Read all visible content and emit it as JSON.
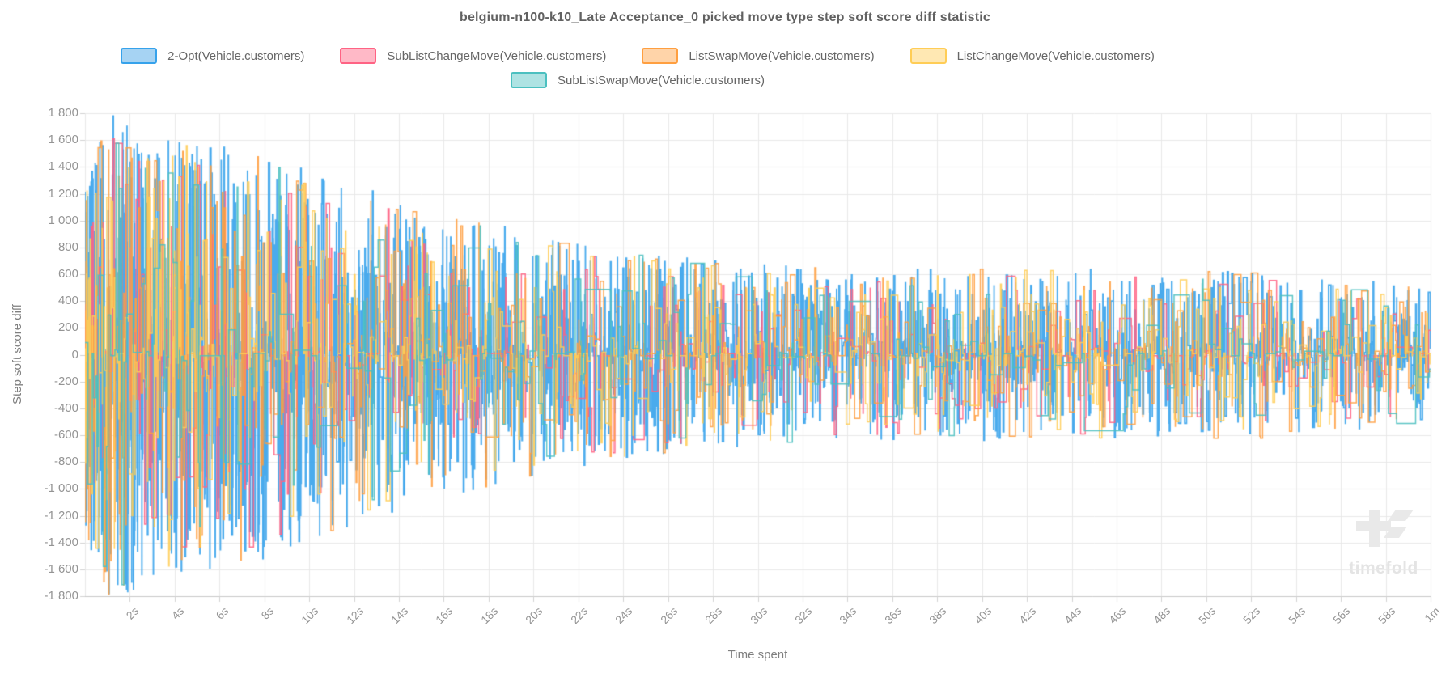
{
  "chart": {
    "title": "belgium-n100-k10_Late Acceptance_0 picked move type step soft score diff statistic",
    "x_axis_title": "Time spent",
    "y_axis_title": "Step soft score diff"
  },
  "watermark": {
    "text": "timefold"
  },
  "colors": {
    "grid": "#e8e8e8",
    "axis_border": "#c9c9c9",
    "tick_mark": "#d2d2d2",
    "title_text": "#616161",
    "tick_text": "#949494",
    "axis_title_text": "#7f7f7f",
    "legend_text": "#666666",
    "watermark": "#e9e9e9"
  },
  "chart_data": {
    "type": "line",
    "stepped": true,
    "title": "belgium-n100-k10_Late Acceptance_0 picked move type step soft score diff statistic",
    "xlabel": "Time spent",
    "ylabel": "Step soft score diff",
    "xlim_seconds": [
      0,
      60
    ],
    "ylim": [
      -1800,
      1800
    ],
    "grid": true,
    "legend_position": "top",
    "y_tick_values": [
      1800,
      1600,
      1400,
      1200,
      1000,
      800,
      600,
      400,
      200,
      0,
      -200,
      -400,
      -600,
      -800,
      -1000,
      -1200,
      -1400,
      -1600,
      -1800
    ],
    "y_ticks": [
      "1 800",
      "1 600",
      "1 400",
      "1 200",
      "1 000",
      "800",
      "600",
      "400",
      "200",
      "0",
      "-200",
      "-400",
      "-600",
      "-800",
      "-1 000",
      "-1 200",
      "-1 400",
      "-1 600",
      "-1 800"
    ],
    "x_ticks": [
      {
        "t": 2,
        "label": "2s"
      },
      {
        "t": 4,
        "label": "4s"
      },
      {
        "t": 6,
        "label": "6s"
      },
      {
        "t": 8,
        "label": "8s"
      },
      {
        "t": 10,
        "label": "10s"
      },
      {
        "t": 12,
        "label": "12s"
      },
      {
        "t": 14,
        "label": "14s"
      },
      {
        "t": 16,
        "label": "16s"
      },
      {
        "t": 18,
        "label": "18s"
      },
      {
        "t": 20,
        "label": "20s"
      },
      {
        "t": 22,
        "label": "22s"
      },
      {
        "t": 24,
        "label": "24s"
      },
      {
        "t": 26,
        "label": "26s"
      },
      {
        "t": 28,
        "label": "28s"
      },
      {
        "t": 30,
        "label": "30s"
      },
      {
        "t": 32,
        "label": "32s"
      },
      {
        "t": 34,
        "label": "34s"
      },
      {
        "t": 36,
        "label": "36s"
      },
      {
        "t": 38,
        "label": "38s"
      },
      {
        "t": 40,
        "label": "40s"
      },
      {
        "t": 42,
        "label": "42s"
      },
      {
        "t": 44,
        "label": "44s"
      },
      {
        "t": 46,
        "label": "46s"
      },
      {
        "t": 48,
        "label": "48s"
      },
      {
        "t": 50,
        "label": "50s"
      },
      {
        "t": 52,
        "label": "52s"
      },
      {
        "t": 54,
        "label": "54s"
      },
      {
        "t": 56,
        "label": "56s"
      },
      {
        "t": 58,
        "label": "58s"
      },
      {
        "t": 60,
        "label": "1m"
      }
    ],
    "series": [
      {
        "name": "2-Opt(Vehicle.customers)",
        "color": "#36A2EB",
        "fill": "#A6D3F3",
        "legend_row": 0,
        "points": 3200,
        "amp_scale": 1.0,
        "tail_power": 2.0,
        "x_power": 1.45,
        "seed": 101
      },
      {
        "name": "SubListChangeMove(Vehicle.customers)",
        "color": "#FF6384",
        "fill": "#FFB9C7",
        "legend_row": 0,
        "points": 560,
        "amp_scale": 0.93,
        "tail_power": 2.2,
        "x_power": 1.4,
        "seed": 202
      },
      {
        "name": "ListSwapMove(Vehicle.customers)",
        "color": "#FF9F40",
        "fill": "#FFD4A9",
        "legend_row": 0,
        "points": 760,
        "amp_scale": 1.0,
        "tail_power": 2.2,
        "x_power": 1.4,
        "seed": 303
      },
      {
        "name": "ListChangeMove(Vehicle.customers)",
        "color": "#FFCD56",
        "fill": "#FFE8B3",
        "legend_row": 0,
        "points": 760,
        "amp_scale": 0.97,
        "tail_power": 2.2,
        "x_power": 1.4,
        "seed": 404
      },
      {
        "name": "SubListSwapMove(Vehicle.customers)",
        "color": "#4BC0C0",
        "fill": "#AEE3E3",
        "legend_row": 1,
        "points": 270,
        "amp_scale": 1.0,
        "tail_power": 2.4,
        "x_power": 1.35,
        "seed": 505
      }
    ],
    "amplitude_envelope": {
      "comment_visible_behavior": "noisy step-score diffs decaying over time; estimated max |diff| per time",
      "times": [
        0,
        0.7,
        2,
        3,
        5,
        8,
        11,
        14,
        18,
        22,
        26,
        30,
        35,
        40,
        44,
        48,
        52,
        56,
        60
      ],
      "amplitudes": [
        1250,
        1800,
        1780,
        1660,
        1600,
        1560,
        1360,
        1150,
        980,
        830,
        740,
        680,
        650,
        640,
        660,
        620,
        630,
        560,
        520
      ]
    }
  }
}
